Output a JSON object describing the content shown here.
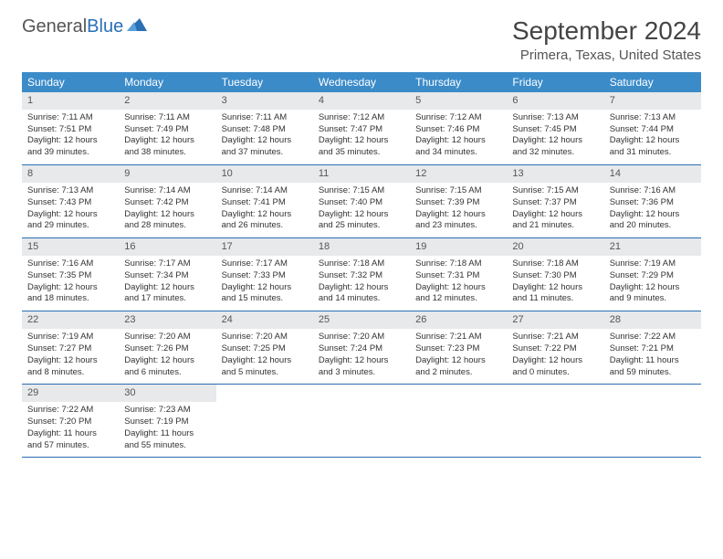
{
  "logo": {
    "text_general": "General",
    "text_blue": "Blue",
    "accent_color": "#2a6fb5"
  },
  "header": {
    "month_title": "September 2024",
    "location": "Primera, Texas, United States"
  },
  "calendar": {
    "type": "table",
    "header_bg": "#3b8bc9",
    "header_fg": "#ffffff",
    "daynum_bg": "#e7e9eb",
    "border_color": "#2a6fb5",
    "day_names": [
      "Sunday",
      "Monday",
      "Tuesday",
      "Wednesday",
      "Thursday",
      "Friday",
      "Saturday"
    ],
    "days": [
      {
        "n": "1",
        "sunrise": "Sunrise: 7:11 AM",
        "sunset": "Sunset: 7:51 PM",
        "dl1": "Daylight: 12 hours",
        "dl2": "and 39 minutes."
      },
      {
        "n": "2",
        "sunrise": "Sunrise: 7:11 AM",
        "sunset": "Sunset: 7:49 PM",
        "dl1": "Daylight: 12 hours",
        "dl2": "and 38 minutes."
      },
      {
        "n": "3",
        "sunrise": "Sunrise: 7:11 AM",
        "sunset": "Sunset: 7:48 PM",
        "dl1": "Daylight: 12 hours",
        "dl2": "and 37 minutes."
      },
      {
        "n": "4",
        "sunrise": "Sunrise: 7:12 AM",
        "sunset": "Sunset: 7:47 PM",
        "dl1": "Daylight: 12 hours",
        "dl2": "and 35 minutes."
      },
      {
        "n": "5",
        "sunrise": "Sunrise: 7:12 AM",
        "sunset": "Sunset: 7:46 PM",
        "dl1": "Daylight: 12 hours",
        "dl2": "and 34 minutes."
      },
      {
        "n": "6",
        "sunrise": "Sunrise: 7:13 AM",
        "sunset": "Sunset: 7:45 PM",
        "dl1": "Daylight: 12 hours",
        "dl2": "and 32 minutes."
      },
      {
        "n": "7",
        "sunrise": "Sunrise: 7:13 AM",
        "sunset": "Sunset: 7:44 PM",
        "dl1": "Daylight: 12 hours",
        "dl2": "and 31 minutes."
      },
      {
        "n": "8",
        "sunrise": "Sunrise: 7:13 AM",
        "sunset": "Sunset: 7:43 PM",
        "dl1": "Daylight: 12 hours",
        "dl2": "and 29 minutes."
      },
      {
        "n": "9",
        "sunrise": "Sunrise: 7:14 AM",
        "sunset": "Sunset: 7:42 PM",
        "dl1": "Daylight: 12 hours",
        "dl2": "and 28 minutes."
      },
      {
        "n": "10",
        "sunrise": "Sunrise: 7:14 AM",
        "sunset": "Sunset: 7:41 PM",
        "dl1": "Daylight: 12 hours",
        "dl2": "and 26 minutes."
      },
      {
        "n": "11",
        "sunrise": "Sunrise: 7:15 AM",
        "sunset": "Sunset: 7:40 PM",
        "dl1": "Daylight: 12 hours",
        "dl2": "and 25 minutes."
      },
      {
        "n": "12",
        "sunrise": "Sunrise: 7:15 AM",
        "sunset": "Sunset: 7:39 PM",
        "dl1": "Daylight: 12 hours",
        "dl2": "and 23 minutes."
      },
      {
        "n": "13",
        "sunrise": "Sunrise: 7:15 AM",
        "sunset": "Sunset: 7:37 PM",
        "dl1": "Daylight: 12 hours",
        "dl2": "and 21 minutes."
      },
      {
        "n": "14",
        "sunrise": "Sunrise: 7:16 AM",
        "sunset": "Sunset: 7:36 PM",
        "dl1": "Daylight: 12 hours",
        "dl2": "and 20 minutes."
      },
      {
        "n": "15",
        "sunrise": "Sunrise: 7:16 AM",
        "sunset": "Sunset: 7:35 PM",
        "dl1": "Daylight: 12 hours",
        "dl2": "and 18 minutes."
      },
      {
        "n": "16",
        "sunrise": "Sunrise: 7:17 AM",
        "sunset": "Sunset: 7:34 PM",
        "dl1": "Daylight: 12 hours",
        "dl2": "and 17 minutes."
      },
      {
        "n": "17",
        "sunrise": "Sunrise: 7:17 AM",
        "sunset": "Sunset: 7:33 PM",
        "dl1": "Daylight: 12 hours",
        "dl2": "and 15 minutes."
      },
      {
        "n": "18",
        "sunrise": "Sunrise: 7:18 AM",
        "sunset": "Sunset: 7:32 PM",
        "dl1": "Daylight: 12 hours",
        "dl2": "and 14 minutes."
      },
      {
        "n": "19",
        "sunrise": "Sunrise: 7:18 AM",
        "sunset": "Sunset: 7:31 PM",
        "dl1": "Daylight: 12 hours",
        "dl2": "and 12 minutes."
      },
      {
        "n": "20",
        "sunrise": "Sunrise: 7:18 AM",
        "sunset": "Sunset: 7:30 PM",
        "dl1": "Daylight: 12 hours",
        "dl2": "and 11 minutes."
      },
      {
        "n": "21",
        "sunrise": "Sunrise: 7:19 AM",
        "sunset": "Sunset: 7:29 PM",
        "dl1": "Daylight: 12 hours",
        "dl2": "and 9 minutes."
      },
      {
        "n": "22",
        "sunrise": "Sunrise: 7:19 AM",
        "sunset": "Sunset: 7:27 PM",
        "dl1": "Daylight: 12 hours",
        "dl2": "and 8 minutes."
      },
      {
        "n": "23",
        "sunrise": "Sunrise: 7:20 AM",
        "sunset": "Sunset: 7:26 PM",
        "dl1": "Daylight: 12 hours",
        "dl2": "and 6 minutes."
      },
      {
        "n": "24",
        "sunrise": "Sunrise: 7:20 AM",
        "sunset": "Sunset: 7:25 PM",
        "dl1": "Daylight: 12 hours",
        "dl2": "and 5 minutes."
      },
      {
        "n": "25",
        "sunrise": "Sunrise: 7:20 AM",
        "sunset": "Sunset: 7:24 PM",
        "dl1": "Daylight: 12 hours",
        "dl2": "and 3 minutes."
      },
      {
        "n": "26",
        "sunrise": "Sunrise: 7:21 AM",
        "sunset": "Sunset: 7:23 PM",
        "dl1": "Daylight: 12 hours",
        "dl2": "and 2 minutes."
      },
      {
        "n": "27",
        "sunrise": "Sunrise: 7:21 AM",
        "sunset": "Sunset: 7:22 PM",
        "dl1": "Daylight: 12 hours",
        "dl2": "and 0 minutes."
      },
      {
        "n": "28",
        "sunrise": "Sunrise: 7:22 AM",
        "sunset": "Sunset: 7:21 PM",
        "dl1": "Daylight: 11 hours",
        "dl2": "and 59 minutes."
      },
      {
        "n": "29",
        "sunrise": "Sunrise: 7:22 AM",
        "sunset": "Sunset: 7:20 PM",
        "dl1": "Daylight: 11 hours",
        "dl2": "and 57 minutes."
      },
      {
        "n": "30",
        "sunrise": "Sunrise: 7:23 AM",
        "sunset": "Sunset: 7:19 PM",
        "dl1": "Daylight: 11 hours",
        "dl2": "and 55 minutes."
      }
    ]
  }
}
